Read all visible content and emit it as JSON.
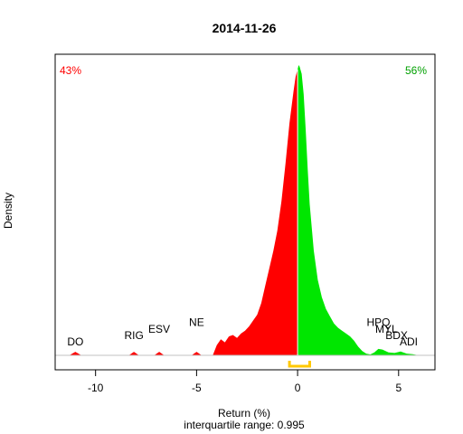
{
  "chart_data": {
    "type": "area",
    "title": "2014-11-26",
    "xlabel": "Return (%)",
    "subtitle": "interquartile range: 0.995",
    "ylabel": "Density",
    "xlim": [
      -12,
      6.8
    ],
    "ylim": [
      0,
      1
    ],
    "x_ticks": [
      -10,
      -5,
      0,
      5
    ],
    "split_at": 0,
    "negative_share_label": "43%",
    "positive_share_label": "56%",
    "colors": {
      "negative": "#ff0000",
      "positive": "#00e600",
      "iqr_bracket": "#ffc800",
      "baseline": "#c0c0c0",
      "frame": "#000000"
    },
    "iqr": [
      -0.4,
      0.6
    ],
    "density": {
      "x": [
        -12,
        -11.3,
        -11.0,
        -10.7,
        -8.35,
        -8.1,
        -7.85,
        -7.1,
        -6.85,
        -6.6,
        -5.25,
        -5.0,
        -4.75,
        -4.2,
        -4.0,
        -3.8,
        -3.6,
        -3.4,
        -3.2,
        -3.0,
        -2.8,
        -2.6,
        -2.4,
        -2.2,
        -2.0,
        -1.8,
        -1.6,
        -1.4,
        -1.2,
        -1.0,
        -0.8,
        -0.6,
        -0.4,
        -0.2,
        -0.1,
        0.0,
        0.05,
        0.1,
        0.2,
        0.3,
        0.4,
        0.5,
        0.6,
        0.8,
        1.0,
        1.2,
        1.4,
        1.6,
        1.8,
        2.0,
        2.2,
        2.4,
        2.6,
        2.8,
        3.0,
        3.2,
        3.4,
        3.6,
        3.8,
        4.0,
        4.2,
        4.5,
        4.8,
        5.1,
        5.4,
        5.7,
        6.0,
        6.8
      ],
      "y": [
        0,
        0,
        0.012,
        0,
        0,
        0.012,
        0,
        0,
        0.012,
        0,
        0,
        0.012,
        0,
        0,
        0.035,
        0.055,
        0.045,
        0.065,
        0.07,
        0.06,
        0.075,
        0.085,
        0.1,
        0.12,
        0.14,
        0.18,
        0.24,
        0.3,
        0.36,
        0.43,
        0.53,
        0.66,
        0.8,
        0.91,
        0.96,
        0.985,
        1.0,
        0.995,
        0.97,
        0.9,
        0.78,
        0.64,
        0.52,
        0.36,
        0.26,
        0.2,
        0.16,
        0.135,
        0.11,
        0.095,
        0.085,
        0.075,
        0.065,
        0.05,
        0.03,
        0.015,
        0.006,
        0.003,
        0.01,
        0.022,
        0.02,
        0.01,
        0.008,
        0.013,
        0.006,
        0.004,
        0,
        0
      ]
    },
    "annotations": [
      {
        "text": "DO",
        "x": -11.0,
        "level": 0.0
      },
      {
        "text": "RIG",
        "x": -8.1,
        "level": 0.04
      },
      {
        "text": "ESV",
        "x": -6.85,
        "level": 0.08
      },
      {
        "text": "NE",
        "x": -5.0,
        "level": 0.125
      },
      {
        "text": "HPQ",
        "x": 4.0,
        "level": 0.125
      },
      {
        "text": "MYL",
        "x": 4.4,
        "level": 0.08
      },
      {
        "text": "BDX",
        "x": 4.9,
        "level": 0.04
      },
      {
        "text": "ADI",
        "x": 5.5,
        "level": 0.0
      }
    ]
  }
}
